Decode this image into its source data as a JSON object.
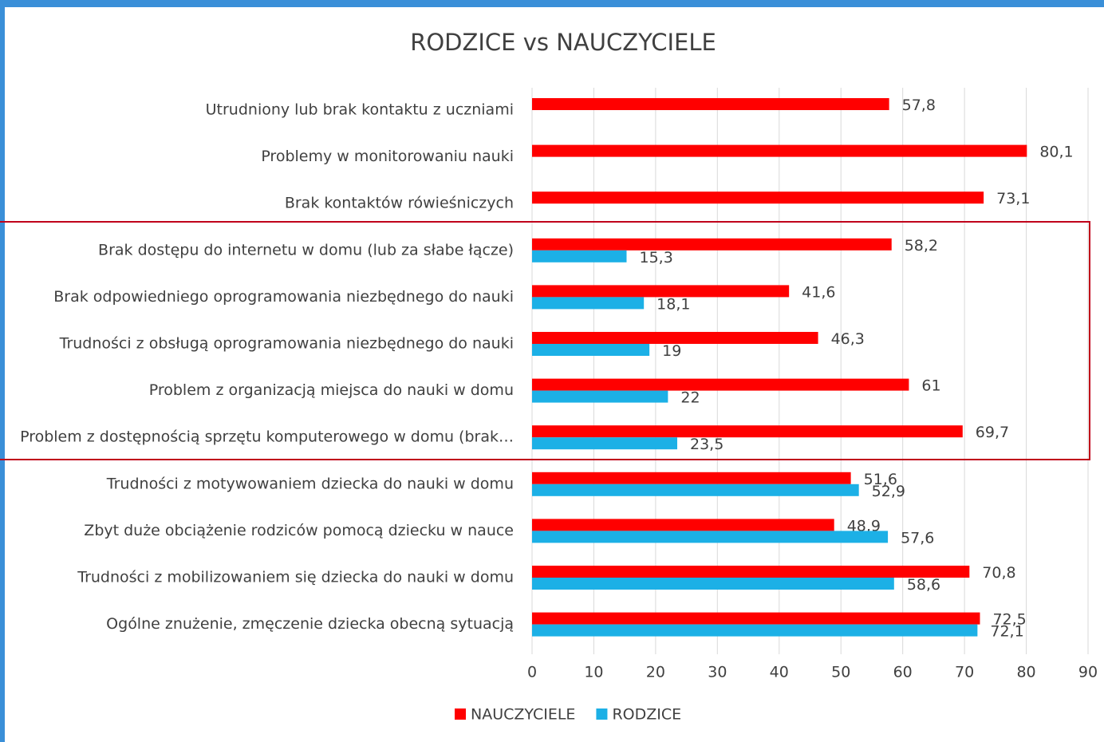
{
  "chart_data": {
    "type": "bar",
    "orientation": "horizontal",
    "title": "RODZICE vs NAUCZYCIELE",
    "categories": [
      "Utrudniony lub brak kontaktu z uczniami",
      "Problemy w monitorowaniu nauki",
      "Brak kontaktów rówieśniczych",
      "Brak dostępu do internetu w domu (lub za słabe łącze)",
      "Brak odpowiedniego oprogramowania niezbędnego do nauki",
      "Trudności z obsługą oprogramowania niezbędnego do nauki",
      "Problem z organizacją miejsca do nauki w domu",
      "Problem z dostępnością sprzętu komputerowego w domu (brak…",
      "Trudności z motywowaniem dziecka do nauki w domu",
      "Zbyt duże obciążenie rodziców pomocą dziecku w nauce",
      "Trudności z mobilizowaniem się dziecka do nauki w domu",
      "Ogólne znużenie, zmęczenie dziecka obecną sytuacją"
    ],
    "series": [
      {
        "name": "NAUCZYCIELE",
        "color": "#ff0000",
        "values": [
          57.8,
          80.1,
          73.1,
          58.2,
          41.6,
          46.3,
          61,
          69.7,
          51.6,
          48.9,
          70.8,
          72.5
        ],
        "value_labels": [
          "57,8",
          "80,1",
          "73,1",
          "58,2",
          "41,6",
          "46,3",
          "61",
          "69,7",
          "51,6",
          "48,9",
          "70,8",
          "72,5"
        ]
      },
      {
        "name": "RODZICE",
        "color": "#1cb0e6",
        "values": [
          null,
          null,
          null,
          15.3,
          18.1,
          19,
          22,
          23.5,
          52.9,
          57.6,
          58.6,
          72.1
        ],
        "value_labels": [
          null,
          null,
          null,
          "15,3",
          "18,1",
          "19",
          "22",
          "23,5",
          "52,9",
          "57,6",
          "58,6",
          "72,1"
        ]
      }
    ],
    "xlim": [
      0,
      90
    ],
    "xticks": [
      0,
      10,
      20,
      30,
      40,
      50,
      60,
      70,
      80,
      90
    ],
    "grid": true,
    "legend": "bottom"
  }
}
